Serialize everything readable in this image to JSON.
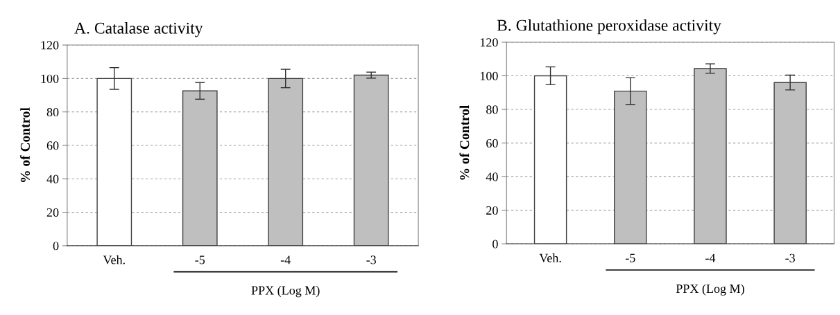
{
  "chart_data": [
    {
      "type": "bar",
      "title": "A. Catalase activity",
      "ylabel": "% of Control",
      "xlabel": "PPX (Log M)",
      "categories": [
        "Veh.",
        "-5",
        "-4",
        "-3"
      ],
      "values": [
        100,
        92.6,
        100,
        102
      ],
      "errors": [
        6.5,
        5,
        5.5,
        1.8
      ],
      "colors": [
        "#ffffff",
        "#bfbfbf",
        "#bfbfbf",
        "#bfbfbf"
      ],
      "ylim": [
        0,
        120
      ],
      "yticks": [
        0,
        20,
        40,
        60,
        80,
        100,
        120
      ],
      "grid": "y"
    },
    {
      "type": "bar",
      "title": "B. Glutathione peroxidase activity",
      "ylabel": "% of Control",
      "xlabel": "PPX (Log M)",
      "categories": [
        "Veh.",
        "-5",
        "-4",
        "-3"
      ],
      "values": [
        100,
        90.9,
        104.3,
        96
      ],
      "errors": [
        5.3,
        8,
        2.8,
        4.4
      ],
      "colors": [
        "#ffffff",
        "#bfbfbf",
        "#bfbfbf",
        "#bfbfbf"
      ],
      "ylim": [
        0,
        120
      ],
      "yticks": [
        0,
        20,
        40,
        60,
        80,
        100,
        120
      ],
      "grid": "y"
    }
  ]
}
